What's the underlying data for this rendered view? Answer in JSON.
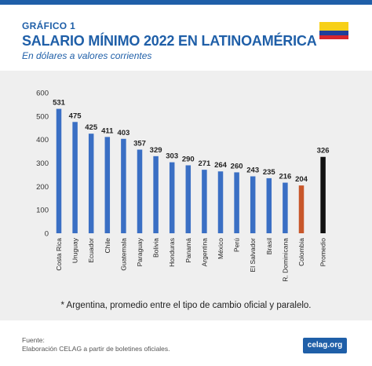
{
  "header": {
    "kicker": "GRÁFICO 1",
    "title": "SALARIO MÍNIMO 2022 EN LATINOAMÉRICA",
    "subtitle": "En dólares a valores corrientes"
  },
  "note": "* Argentina, promedio entre el tipo de cambio oficial y paralelo.",
  "footer": {
    "source_label": "Fuente:",
    "source_text": "Elaboración CELAG a partir de boletines oficiales.",
    "brand": "celag.org"
  },
  "colors": {
    "accent": "#1f5fa8",
    "bar_default": "#3a6fc4",
    "bar_highlight": "#c8572a",
    "bar_average": "#111111",
    "panel_bg": "#efefef"
  },
  "chart_data": {
    "type": "bar",
    "categories": [
      "Costa Rica",
      "Uruguay",
      "Ecuador",
      "Chile",
      "Guatemala",
      "Paraguay",
      "Bolivia",
      "Honduras",
      "Panamá",
      "Argentina",
      "México",
      "Perú",
      "El Salvador",
      "Brasil",
      "R. Dominicana",
      "Colombia",
      "Promedio"
    ],
    "values": [
      531,
      475,
      425,
      411,
      403,
      357,
      329,
      303,
      290,
      271,
      264,
      260,
      243,
      235,
      216,
      204,
      326
    ],
    "data_labels": [
      "531",
      "475",
      "425",
      "411",
      "403",
      "357",
      "329",
      "303",
      "290",
      "271",
      "264",
      "260",
      "243",
      "235",
      "216",
      "204",
      "326"
    ],
    "highlight": "Colombia",
    "average": "Promedio",
    "ylim": [
      0,
      600
    ],
    "yticks": [
      0,
      100,
      200,
      300,
      400,
      500,
      600
    ],
    "grid": false,
    "legend": "none"
  }
}
